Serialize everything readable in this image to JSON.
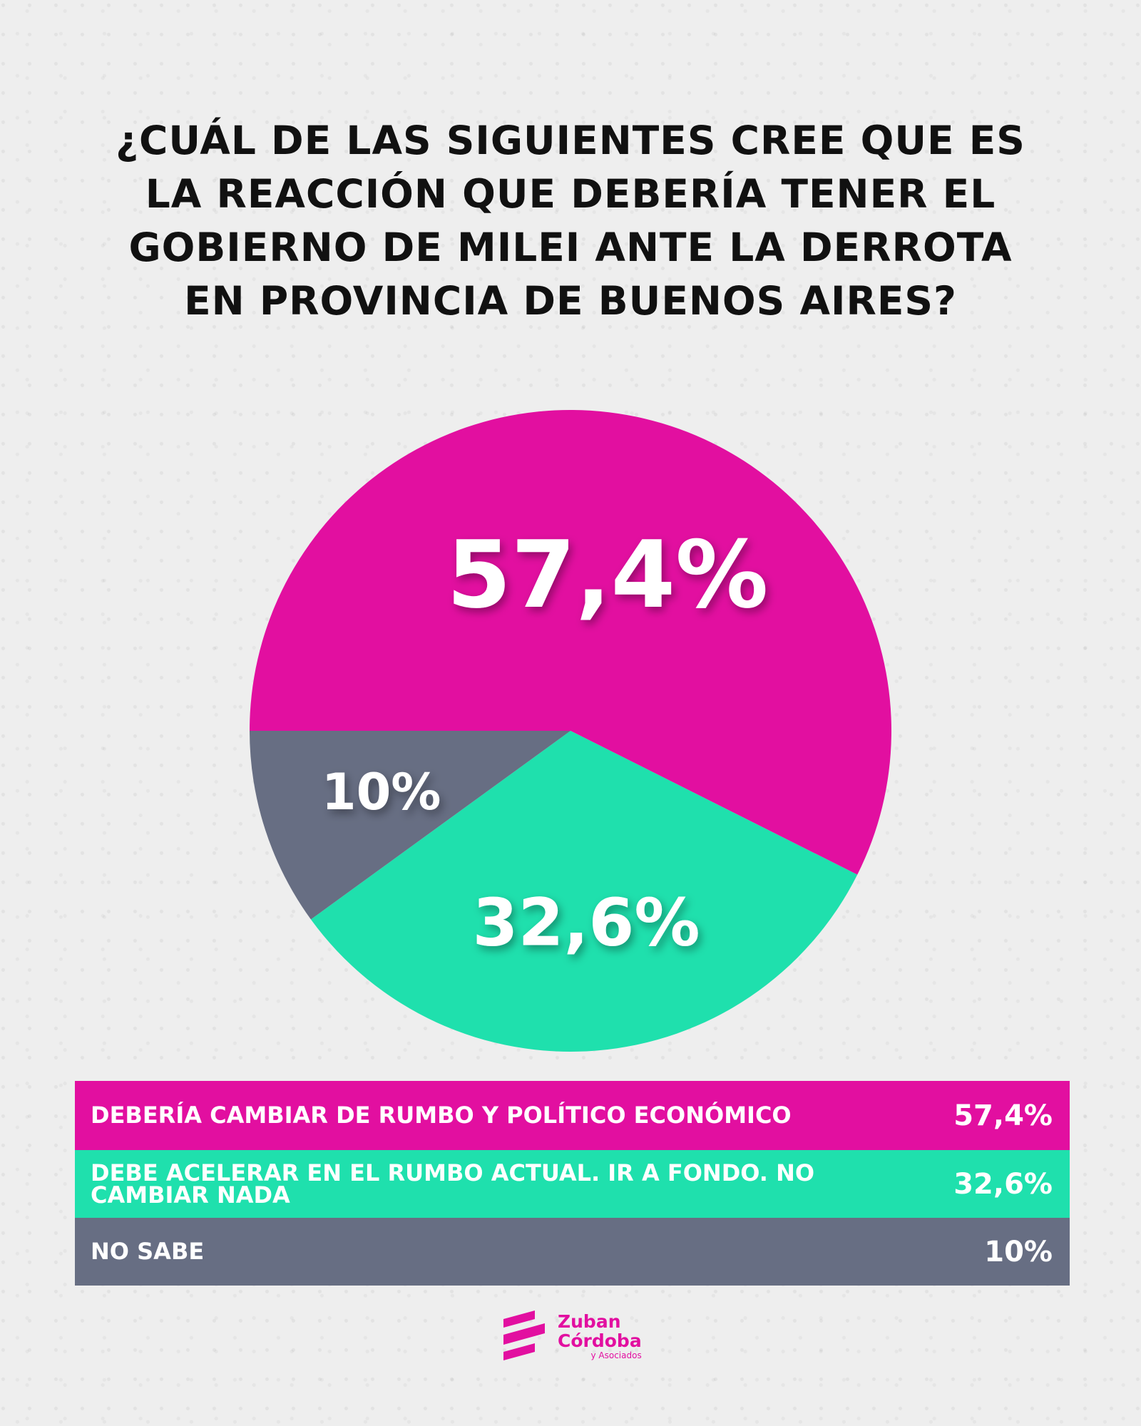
{
  "title_lines": [
    "¿CUÁL DE LAS SIGUIENTES CREE QUE ES",
    "LA REACCIÓN QUE DEBERÍA TENER EL",
    "GOBIERNO DE MILEI ANTE LA DERROTA",
    "EN PROVINCIA DE BUENOS AIRES?"
  ],
  "chart_data": {
    "type": "pie",
    "slices": [
      {
        "label": "DEBERÍA CAMBIAR DE RUMBO Y POLÍTICO ECONÓMICO",
        "value": 57.4,
        "display": "57,4%",
        "color": "#e20fa0"
      },
      {
        "label": "DEBE ACELERAR EN EL RUMBO ACTUAL. IR A FONDO. NO CAMBIAR NADA",
        "value": 32.6,
        "display": "32,6%",
        "color": "#1fe0ad"
      },
      {
        "label": "NO SABE",
        "value": 10,
        "display": "10%",
        "color": "#676e83"
      }
    ]
  },
  "logo": {
    "line1": "Zuban",
    "line2": "Córdoba",
    "line3": "y Asociados"
  },
  "colors": {
    "pink": "#e20fa0",
    "teal": "#1fe0ad",
    "gray": "#676e83",
    "background": "#eeeeee"
  }
}
